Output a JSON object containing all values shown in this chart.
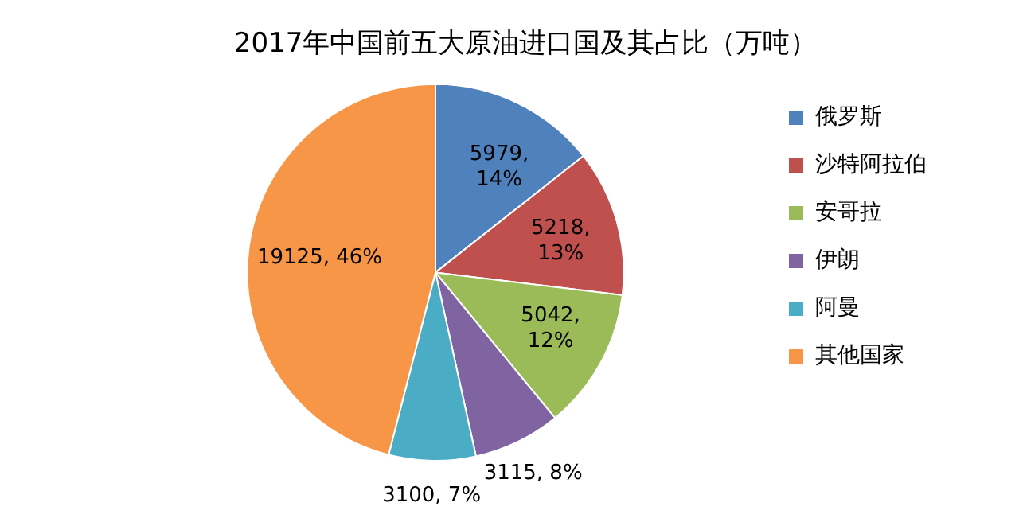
{
  "chart_data": {
    "type": "pie",
    "title": "2017年中国前五大原油进口国及其占比（万吨）",
    "categories": [
      "俄罗斯",
      "沙特阿拉伯",
      "安哥拉",
      "伊朗",
      "阿曼",
      "其他国家"
    ],
    "values": [
      5979,
      5218,
      5042,
      3115,
      3100,
      19125
    ],
    "colors": [
      "#4f81bd",
      "#c0504d",
      "#9bbb59",
      "#8064a2",
      "#4bacc6",
      "#f79646"
    ],
    "value_labels": [
      "5979, 14%",
      "5218, 13%",
      "5042, 12%",
      "3115, 8%",
      "3100, 7%",
      "19125, 46%"
    ],
    "legend": "right"
  }
}
